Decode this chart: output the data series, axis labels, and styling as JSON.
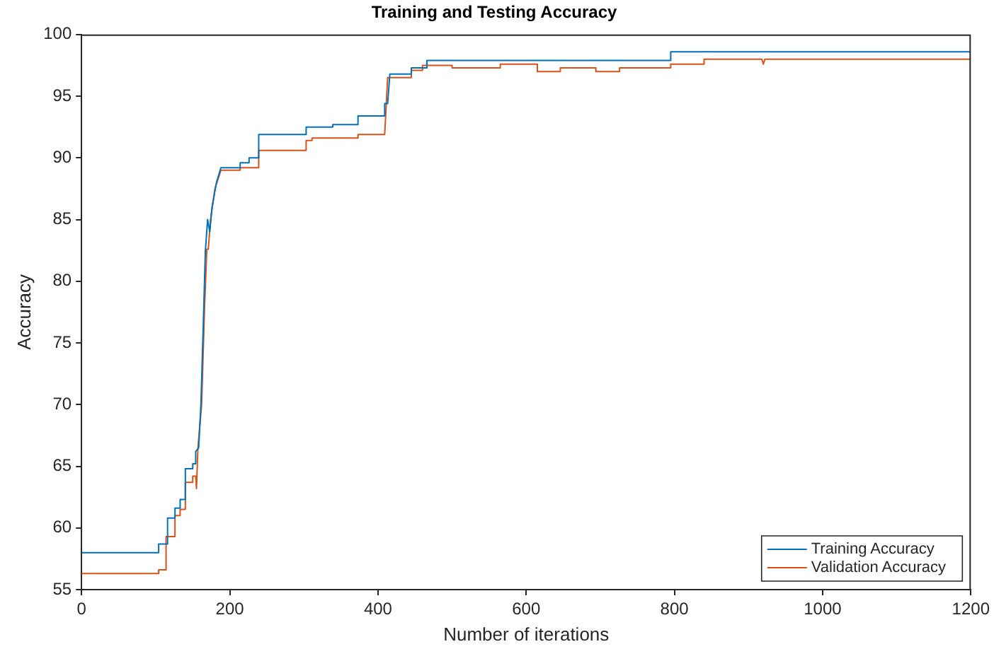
{
  "chart_data": {
    "type": "line",
    "title": "Training and Testing Accuracy",
    "xlabel": "Number of iterations",
    "ylabel": "Accuracy",
    "xlim": [
      0,
      1200
    ],
    "xticks": [
      0,
      200,
      400,
      600,
      800,
      1000,
      1200
    ],
    "ylim": [
      55,
      100
    ],
    "yticks": [
      55,
      60,
      65,
      70,
      75,
      80,
      85,
      90,
      95,
      100
    ],
    "grid": false,
    "legend": "bottom right",
    "marker": "none",
    "line_style": "solid",
    "series": [
      {
        "name": "Training Accuracy",
        "color": "#0072bd",
        "x": [
          0,
          104,
          104,
          116,
          116,
          126,
          126,
          133,
          133,
          140,
          140,
          150,
          150,
          154,
          154,
          158,
          161,
          164,
          167,
          170,
          173,
          176,
          182,
          188,
          214,
          214,
          226,
          226,
          239,
          239,
          303,
          303,
          339,
          339,
          373,
          373,
          409,
          409,
          413,
          416,
          445,
          445,
          466,
          466,
          795,
          795,
          1200
        ],
        "values": [
          58,
          58,
          58.7,
          58.7,
          60.8,
          60.8,
          61.6,
          61.6,
          62.3,
          62.3,
          64.8,
          64.8,
          65.2,
          65.2,
          66.2,
          66.5,
          70,
          76,
          82.4,
          85,
          84,
          86,
          88,
          89.2,
          89.2,
          89.6,
          89.6,
          90,
          90,
          91.9,
          91.9,
          92.5,
          92.5,
          92.7,
          92.7,
          93.4,
          93.4,
          94.4,
          94.4,
          96.8,
          96.8,
          97.3,
          97.3,
          97.9,
          97.9,
          98.6,
          98.6
        ]
      },
      {
        "name": "Validation Accuracy",
        "color": "#d95319",
        "x": [
          0,
          104,
          104,
          114,
          114,
          126,
          126,
          133,
          133,
          140,
          140,
          150,
          150,
          154,
          155,
          157,
          162,
          166,
          169,
          171,
          174,
          180,
          188,
          214,
          214,
          239,
          239,
          303,
          303,
          311,
          311,
          373,
          373,
          409,
          413,
          445,
          445,
          460,
          460,
          500,
          500,
          565,
          565,
          615,
          615,
          646,
          646,
          694,
          694,
          726,
          726,
          795,
          795,
          840,
          840,
          918,
          920,
          922,
          1200
        ],
        "values": [
          56.3,
          56.3,
          56.6,
          56.6,
          59.3,
          59.3,
          61,
          61,
          61.5,
          61.5,
          63.7,
          63.7,
          64.2,
          64.2,
          63.2,
          66.5,
          70,
          78,
          82.6,
          82.6,
          85,
          87.5,
          89,
          89,
          89.2,
          89.2,
          90.6,
          90.6,
          91.4,
          91.4,
          91.6,
          91.6,
          91.9,
          91.9,
          96.5,
          96.5,
          97.1,
          97.1,
          97.5,
          97.5,
          97.3,
          97.3,
          97.6,
          97.6,
          97,
          97,
          97.3,
          97.3,
          97,
          97,
          97.3,
          97.3,
          97.6,
          97.6,
          98,
          98,
          97.6,
          98,
          98
        ]
      }
    ]
  }
}
